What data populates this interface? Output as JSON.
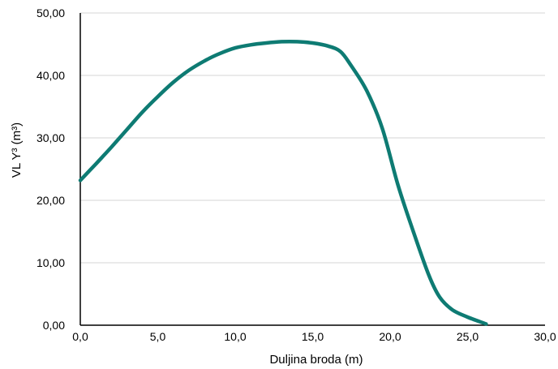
{
  "chart_data": {
    "type": "line",
    "xlabel": "Duljina broda (m)",
    "ylabel": "VL Y³ (m³)",
    "xlim": [
      0,
      30
    ],
    "ylim": [
      0,
      50
    ],
    "x_ticks": [
      "0,0",
      "5,0",
      "10,0",
      "15,0",
      "20,0",
      "25,0",
      "30,0"
    ],
    "y_ticks": [
      "0,00",
      "10,00",
      "20,00",
      "30,00",
      "40,00",
      "50,00"
    ],
    "grid": "horizontal",
    "line_color": "#0e7b73",
    "series": [
      {
        "x": [
          0,
          1,
          2,
          3,
          4,
          5,
          6,
          7,
          8,
          9,
          10,
          11,
          12,
          13,
          14,
          15,
          16,
          16.8,
          17.5,
          18.5,
          19.5,
          20.5,
          21.5,
          22.5,
          23.2,
          24,
          25,
          26.2
        ],
        "y": [
          23.2,
          25.8,
          28.5,
          31.3,
          34.1,
          36.6,
          38.9,
          40.8,
          42.3,
          43.5,
          44.4,
          44.9,
          45.2,
          45.4,
          45.4,
          45.2,
          44.7,
          43.8,
          41.5,
          37.5,
          31.5,
          22.5,
          15.0,
          8.0,
          4.5,
          2.5,
          1.3,
          0.2
        ]
      }
    ]
  }
}
